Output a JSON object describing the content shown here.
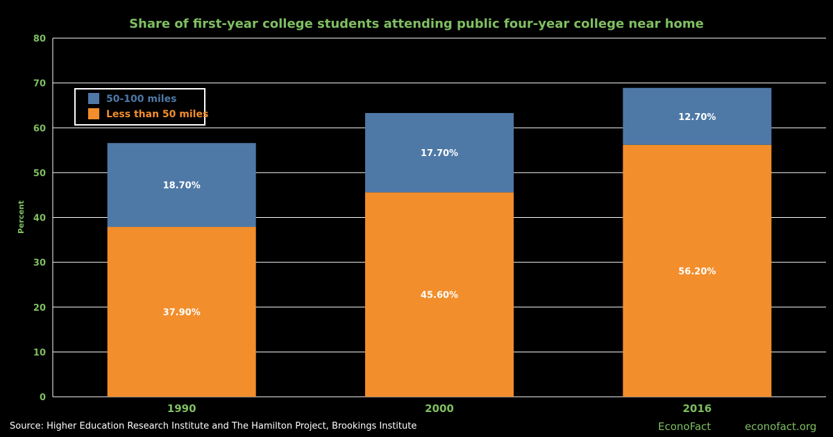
{
  "colors": {
    "background": "#000000",
    "text_green": "#7fbf62",
    "series_near": "#f28e2b",
    "series_mid": "#4e79a7",
    "axis": "#ffffff",
    "grid": "#ffffff",
    "data_label": "#ffffff"
  },
  "chart_data": {
    "type": "bar",
    "stacked": true,
    "title": "Share of first-year college students attending public four-year college near home",
    "ylabel": "Percent",
    "xlabel": "",
    "ylim": [
      0,
      80
    ],
    "yticks": [
      0,
      10,
      20,
      30,
      40,
      50,
      60,
      70,
      80
    ],
    "grid": true,
    "legend": "top-left",
    "categories": [
      "1990",
      "2000",
      "2016"
    ],
    "series": [
      {
        "name": "Less than 50 miles",
        "values": [
          37.9,
          45.6,
          56.2
        ],
        "labels": [
          "37.90%",
          "45.60%",
          "56.20%"
        ],
        "color": "#f28e2b"
      },
      {
        "name": "50-100 miles",
        "values": [
          18.7,
          17.7,
          12.7
        ],
        "labels": [
          "18.70%",
          "17.70%",
          "12.70%"
        ],
        "color": "#4e79a7"
      }
    ],
    "legend_order": [
      "50-100 miles",
      "Less than 50 miles"
    ]
  },
  "footer": {
    "source": "Source: Higher Education Research Institute and The Hamilton Project, Brookings Institute",
    "brand": "EconoFact",
    "site": "econofact.org"
  }
}
